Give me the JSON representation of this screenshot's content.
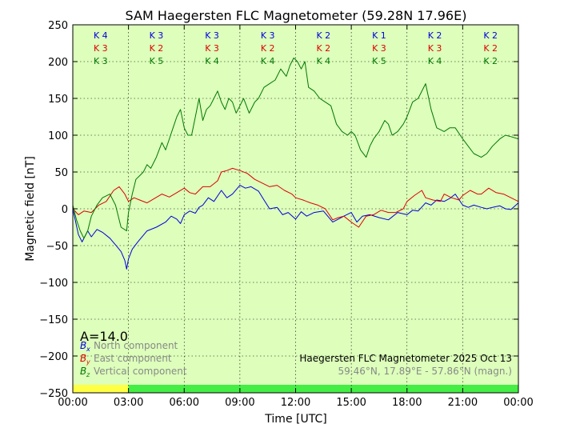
{
  "chart_data": {
    "type": "line",
    "title": "SAM Haegersten FLC Magnetometer (59.28N 17.96E)",
    "xlabel": "Time [UTC]",
    "ylabel": "Magnetic field [nT]",
    "xlim": [
      0,
      24
    ],
    "ylim": [
      -250,
      250
    ],
    "grid": true,
    "x_tick_labels": [
      "00:00",
      "03:00",
      "06:00",
      "09:00",
      "12:00",
      "15:00",
      "18:00",
      "21:00",
      "00:00"
    ],
    "y_ticks": [
      -250,
      -200,
      -150,
      -100,
      -50,
      0,
      50,
      100,
      150,
      200,
      250
    ],
    "colors": {
      "plot_bg": "#ddffbb",
      "north": "#0000dd",
      "east": "#dd0000",
      "vertical": "#007700",
      "quiet_band": "#ffff44",
      "active_band": "#44ee44",
      "footer_text": "#888888"
    },
    "k_index": {
      "rows": [
        "north",
        "east",
        "vertical"
      ],
      "intervals": [
        {
          "north": "K 4",
          "east": "K 3",
          "vertical": "K 3"
        },
        {
          "north": "K 3",
          "east": "K 2",
          "vertical": "K 5"
        },
        {
          "north": "K 3",
          "east": "K 3",
          "vertical": "K 4"
        },
        {
          "north": "K 3",
          "east": "K 2",
          "vertical": "K 4"
        },
        {
          "north": "K 2",
          "east": "K 2",
          "vertical": "K 4"
        },
        {
          "north": "K 1",
          "east": "K 3",
          "vertical": "K 5"
        },
        {
          "north": "K 2",
          "east": "K 3",
          "vertical": "K 4"
        },
        {
          "north": "K 2",
          "east": "K 2",
          "vertical": "K 2"
        }
      ]
    },
    "status_bar": [
      {
        "from": 0,
        "to": 3,
        "status": "quiet"
      },
      {
        "from": 3,
        "to": 24,
        "status": "active"
      }
    ],
    "a_index": "A=14.0",
    "legend": {
      "position": "bottom-left",
      "items": [
        {
          "symbol": "B",
          "sub": "x",
          "label": "North component",
          "key": "north"
        },
        {
          "symbol": "B",
          "sub": "y",
          "label": "East component",
          "key": "east"
        },
        {
          "symbol": "B",
          "sub": "z",
          "label": "Vertical component",
          "key": "vertical"
        }
      ]
    },
    "footer": {
      "line1": "Haegersten FLC Magnetometer 2025 Oct 13",
      "line2": "59.46°N, 17.89°E - 57.86°N (magn.)"
    },
    "series": [
      {
        "name": "North component",
        "key": "north",
        "x": [
          0,
          0.3,
          0.5,
          0.8,
          1,
          1.3,
          1.6,
          2,
          2.4,
          2.6,
          2.8,
          2.9,
          3,
          3.2,
          3.5,
          4,
          4.5,
          5,
          5.3,
          5.6,
          5.8,
          6,
          6.3,
          6.6,
          6.8,
          7,
          7.3,
          7.6,
          8,
          8.3,
          8.6,
          9,
          9.3,
          9.6,
          10,
          10.3,
          10.6,
          11,
          11.3,
          11.6,
          12,
          12.3,
          12.6,
          13,
          13.5,
          14,
          14.3,
          14.6,
          15,
          15.3,
          15.6,
          16,
          16.5,
          17,
          17.5,
          18,
          18.3,
          18.6,
          19,
          19.3,
          19.6,
          20,
          20.3,
          20.6,
          21,
          21.3,
          21.6,
          22,
          22.3,
          22.6,
          23,
          23.3,
          23.6,
          24
        ],
        "values": [
          0,
          -35,
          -45,
          -30,
          -38,
          -28,
          -32,
          -40,
          -52,
          -58,
          -70,
          -82,
          -68,
          -55,
          -45,
          -30,
          -25,
          -18,
          -10,
          -14,
          -20,
          -8,
          -3,
          -6,
          2,
          5,
          15,
          10,
          25,
          15,
          20,
          32,
          28,
          30,
          24,
          12,
          0,
          2,
          -8,
          -5,
          -14,
          -4,
          -10,
          -5,
          -3,
          -18,
          -14,
          -10,
          -5,
          -18,
          -10,
          -8,
          -12,
          -15,
          -5,
          -8,
          -2,
          -3,
          8,
          5,
          12,
          10,
          14,
          20,
          5,
          2,
          5,
          2,
          0,
          2,
          4,
          0,
          -1,
          8
        ]
      },
      {
        "name": "East component",
        "key": "east",
        "x": [
          0,
          0.3,
          0.6,
          1,
          1.4,
          1.8,
          2.2,
          2.5,
          2.8,
          3,
          3.3,
          3.6,
          4,
          4.4,
          4.8,
          5.2,
          5.6,
          6,
          6.3,
          6.6,
          7,
          7.4,
          7.8,
          8,
          8.3,
          8.6,
          9,
          9.4,
          9.8,
          10.2,
          10.6,
          11,
          11.4,
          11.8,
          12,
          12.4,
          12.8,
          13.2,
          13.6,
          14,
          14.3,
          14.6,
          15,
          15.4,
          15.8,
          16.2,
          16.6,
          17,
          17.4,
          17.8,
          18,
          18.4,
          18.8,
          19,
          19.4,
          19.8,
          20,
          20.4,
          20.8,
          21,
          21.4,
          21.8,
          22,
          22.4,
          22.8,
          23.2,
          23.6,
          24
        ],
        "values": [
          0,
          -8,
          -3,
          -5,
          5,
          10,
          25,
          30,
          20,
          10,
          15,
          12,
          8,
          14,
          20,
          16,
          22,
          28,
          22,
          20,
          30,
          30,
          38,
          50,
          52,
          55,
          52,
          48,
          40,
          35,
          30,
          32,
          25,
          20,
          15,
          12,
          8,
          5,
          0,
          -15,
          -12,
          -10,
          -18,
          -25,
          -10,
          -8,
          -2,
          -5,
          -5,
          0,
          10,
          18,
          25,
          15,
          12,
          10,
          20,
          15,
          12,
          18,
          25,
          20,
          20,
          28,
          22,
          20,
          15,
          10
        ]
      },
      {
        "name": "Vertical component",
        "key": "vertical",
        "x": [
          0,
          0.2,
          0.4,
          0.6,
          0.8,
          1,
          1.3,
          1.6,
          2,
          2.3,
          2.6,
          2.9,
          3,
          3.2,
          3.4,
          3.6,
          3.8,
          4,
          4.2,
          4.5,
          4.8,
          5,
          5.2,
          5.4,
          5.6,
          5.8,
          6,
          6.2,
          6.4,
          6.6,
          6.8,
          7,
          7.2,
          7.4,
          7.6,
          7.8,
          8,
          8.2,
          8.4,
          8.6,
          8.8,
          9,
          9.2,
          9.5,
          9.8,
          10,
          10.3,
          10.6,
          10.9,
          11.2,
          11.5,
          11.7,
          11.9,
          12.1,
          12.3,
          12.5,
          12.7,
          13,
          13.3,
          13.6,
          13.9,
          14.2,
          14.5,
          14.8,
          15,
          15.2,
          15.5,
          15.8,
          16,
          16.2,
          16.5,
          16.8,
          17,
          17.2,
          17.5,
          17.8,
          18,
          18.3,
          18.6,
          19,
          19.3,
          19.6,
          20,
          20.3,
          20.6,
          21,
          21.3,
          21.6,
          22,
          22.3,
          22.6,
          23,
          23.3,
          23.6,
          24
        ],
        "values": [
          5,
          -15,
          -30,
          -40,
          -30,
          -10,
          5,
          15,
          20,
          5,
          -25,
          -30,
          -5,
          20,
          40,
          45,
          50,
          60,
          55,
          70,
          90,
          80,
          95,
          110,
          125,
          135,
          110,
          100,
          100,
          125,
          150,
          120,
          135,
          140,
          150,
          160,
          145,
          135,
          150,
          145,
          130,
          140,
          150,
          130,
          145,
          150,
          165,
          170,
          175,
          190,
          180,
          195,
          205,
          200,
          190,
          200,
          165,
          160,
          150,
          145,
          140,
          115,
          105,
          100,
          105,
          100,
          80,
          70,
          85,
          95,
          105,
          120,
          115,
          100,
          105,
          115,
          125,
          145,
          150,
          170,
          135,
          110,
          105,
          110,
          110,
          95,
          85,
          75,
          70,
          75,
          85,
          95,
          100,
          98,
          95
        ]
      }
    ]
  }
}
